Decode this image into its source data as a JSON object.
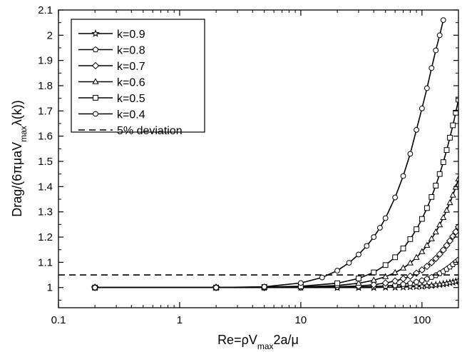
{
  "chart_data": {
    "type": "line",
    "xscale": "log",
    "xlim": [
      0.1,
      200
    ],
    "ylim": [
      0.92,
      2.1
    ],
    "xticks": [
      {
        "value": 0.1,
        "label": "0.1"
      },
      {
        "value": 1,
        "label": "1"
      },
      {
        "value": 10,
        "label": "10"
      },
      {
        "value": 100,
        "label": "100"
      }
    ],
    "yticks": [
      {
        "value": 1,
        "label": "1"
      },
      {
        "value": 1.1,
        "label": "1.1"
      },
      {
        "value": 1.2,
        "label": "1.2"
      },
      {
        "value": 1.3,
        "label": "1.3"
      },
      {
        "value": 1.4,
        "label": "1.4"
      },
      {
        "value": 1.5,
        "label": "1.5"
      },
      {
        "value": 1.6,
        "label": "1.6"
      },
      {
        "value": 1.7,
        "label": "1.7"
      },
      {
        "value": 1.8,
        "label": "1.8"
      },
      {
        "value": 1.9,
        "label": "1.9"
      },
      {
        "value": 2,
        "label": "2"
      },
      {
        "value": 2.1,
        "label": "2.1"
      }
    ],
    "xlabel": {
      "base": "Re=ρV",
      "sub": "max",
      "rest": "2a/μ"
    },
    "ylabel": {
      "pre": "Drag/(6πμaV",
      "sub": "max",
      "post": "λ(k))"
    },
    "grid": false,
    "legend_position": "top-left",
    "series": [
      {
        "name": "k=0.9",
        "marker": "star",
        "points": [
          [
            0.2,
            1.0
          ],
          [
            2,
            1.0
          ],
          [
            5,
            1.0
          ],
          [
            10,
            1.0
          ],
          [
            20,
            1.0
          ],
          [
            30,
            1.0
          ],
          [
            40,
            1.0
          ],
          [
            50,
            1.001
          ],
          [
            60,
            1.001
          ],
          [
            70,
            1.002
          ],
          [
            80,
            1.003
          ],
          [
            90,
            1.004
          ],
          [
            100,
            1.005
          ],
          [
            110,
            1.007
          ],
          [
            120,
            1.008
          ],
          [
            130,
            1.01
          ],
          [
            140,
            1.012
          ],
          [
            150,
            1.014
          ],
          [
            160,
            1.016
          ],
          [
            170,
            1.019
          ],
          [
            180,
            1.021
          ],
          [
            190,
            1.024
          ],
          [
            200,
            1.028
          ]
        ]
      },
      {
        "name": "k=0.8",
        "marker": "pentagon",
        "points": [
          [
            0.2,
            1.0
          ],
          [
            2,
            1.0
          ],
          [
            5,
            1.0
          ],
          [
            10,
            1.0
          ],
          [
            20,
            1.001
          ],
          [
            30,
            1.002
          ],
          [
            40,
            1.004
          ],
          [
            50,
            1.006
          ],
          [
            60,
            1.009
          ],
          [
            70,
            1.013
          ],
          [
            80,
            1.017
          ],
          [
            90,
            1.022
          ],
          [
            100,
            1.028
          ],
          [
            110,
            1.034
          ],
          [
            120,
            1.041
          ],
          [
            130,
            1.048
          ],
          [
            140,
            1.056
          ],
          [
            150,
            1.064
          ],
          [
            160,
            1.073
          ],
          [
            170,
            1.082
          ],
          [
            180,
            1.092
          ],
          [
            190,
            1.101
          ],
          [
            200,
            1.11
          ]
        ]
      },
      {
        "name": "k=0.7",
        "marker": "diamond",
        "points": [
          [
            0.2,
            1.0
          ],
          [
            2,
            1.0
          ],
          [
            5,
            1.0
          ],
          [
            10,
            1.001
          ],
          [
            20,
            1.003
          ],
          [
            30,
            1.006
          ],
          [
            40,
            1.011
          ],
          [
            50,
            1.018
          ],
          [
            60,
            1.026
          ],
          [
            70,
            1.035
          ],
          [
            80,
            1.045
          ],
          [
            90,
            1.057
          ],
          [
            100,
            1.07
          ],
          [
            110,
            1.084
          ],
          [
            120,
            1.099
          ],
          [
            130,
            1.115
          ],
          [
            140,
            1.132
          ],
          [
            150,
            1.149
          ],
          [
            160,
            1.167
          ],
          [
            170,
            1.185
          ],
          [
            180,
            1.203
          ],
          [
            190,
            1.221
          ],
          [
            200,
            1.24
          ]
        ]
      },
      {
        "name": "k=0.6",
        "marker": "triangle",
        "points": [
          [
            0.2,
            1.0
          ],
          [
            2,
            1.0
          ],
          [
            5,
            1.001
          ],
          [
            10,
            1.002
          ],
          [
            20,
            1.008
          ],
          [
            30,
            1.017
          ],
          [
            40,
            1.029
          ],
          [
            50,
            1.043
          ],
          [
            60,
            1.059
          ],
          [
            70,
            1.077
          ],
          [
            80,
            1.097
          ],
          [
            90,
            1.119
          ],
          [
            100,
            1.142
          ],
          [
            110,
            1.167
          ],
          [
            120,
            1.193
          ],
          [
            130,
            1.22
          ],
          [
            140,
            1.248
          ],
          [
            150,
            1.277
          ],
          [
            160,
            1.306
          ],
          [
            170,
            1.336
          ],
          [
            180,
            1.366
          ],
          [
            190,
            1.397
          ],
          [
            200,
            1.43
          ]
        ]
      },
      {
        "name": "k=0.5",
        "marker": "square",
        "points": [
          [
            0.2,
            1.0
          ],
          [
            2,
            1.0
          ],
          [
            5,
            1.002
          ],
          [
            10,
            1.005
          ],
          [
            20,
            1.017
          ],
          [
            30,
            1.036
          ],
          [
            40,
            1.06
          ],
          [
            50,
            1.089
          ],
          [
            60,
            1.12
          ],
          [
            70,
            1.155
          ],
          [
            80,
            1.192
          ],
          [
            90,
            1.231
          ],
          [
            100,
            1.272
          ],
          [
            110,
            1.315
          ],
          [
            120,
            1.359
          ],
          [
            130,
            1.404
          ],
          [
            140,
            1.45
          ],
          [
            150,
            1.497
          ],
          [
            160,
            1.545
          ],
          [
            170,
            1.594
          ],
          [
            180,
            1.643
          ],
          [
            190,
            1.693
          ],
          [
            200,
            1.745
          ]
        ]
      },
      {
        "name": "k=0.4",
        "marker": "circle",
        "points": [
          [
            0.2,
            1.0
          ],
          [
            2,
            1.0
          ],
          [
            5,
            1.003
          ],
          [
            10,
            1.018
          ],
          [
            15,
            1.04
          ],
          [
            20,
            1.067
          ],
          [
            25,
            1.098
          ],
          [
            30,
            1.131
          ],
          [
            35,
            1.165
          ],
          [
            40,
            1.2
          ],
          [
            45,
            1.237
          ],
          [
            50,
            1.275
          ],
          [
            60,
            1.357
          ],
          [
            70,
            1.442
          ],
          [
            80,
            1.53
          ],
          [
            90,
            1.625
          ],
          [
            100,
            1.71
          ],
          [
            110,
            1.79
          ],
          [
            120,
            1.87
          ],
          [
            130,
            1.94
          ],
          [
            140,
            2.0
          ],
          [
            150,
            2.06
          ]
        ]
      },
      {
        "name": "5% deviation",
        "marker": "none",
        "dashed": true,
        "points": [
          [
            0.1,
            1.05
          ],
          [
            200,
            1.05
          ]
        ]
      }
    ]
  }
}
